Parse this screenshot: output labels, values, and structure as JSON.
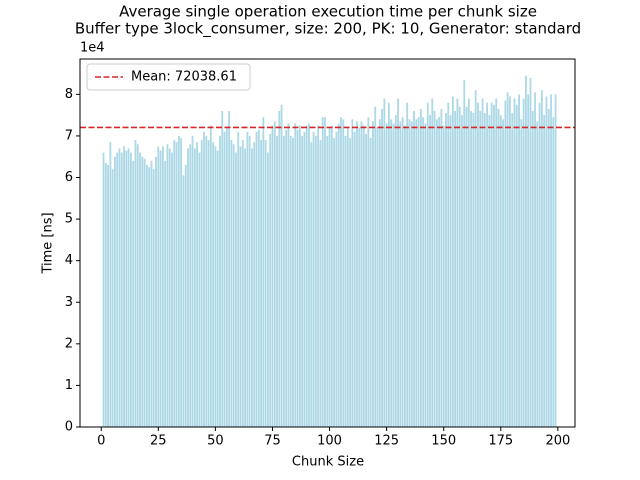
{
  "chart_data": {
    "type": "bar",
    "title": "Average single operation execution time per chunk size",
    "subtitle": "Buffer type 3lock_consumer, size: 200, PK: 10, Generator: standard",
    "x_label": "Chunk Size",
    "y_label": "Time [ns]",
    "y_offset_label": "1e4",
    "color": "#add8e6",
    "mean": {
      "value": 72038.61,
      "label": "Mean: 72038.61",
      "color": "#d62728"
    },
    "legend_position": "upper left",
    "xlim": [
      -9.3,
      207.5
    ],
    "xticks": [
      0,
      25,
      50,
      75,
      100,
      125,
      150,
      175,
      200
    ],
    "ylim": [
      0,
      88500
    ],
    "yticks": [
      {
        "value": 0,
        "label": "0"
      },
      {
        "value": 10000,
        "label": "1"
      },
      {
        "value": 20000,
        "label": "2"
      },
      {
        "value": 30000,
        "label": "3"
      },
      {
        "value": 40000,
        "label": "4"
      },
      {
        "value": 50000,
        "label": "5"
      },
      {
        "value": 60000,
        "label": "6"
      },
      {
        "value": 70000,
        "label": "7"
      },
      {
        "value": 80000,
        "label": "8"
      }
    ],
    "x": [
      1,
      2,
      3,
      4,
      5,
      6,
      7,
      8,
      9,
      10,
      11,
      12,
      13,
      14,
      15,
      16,
      17,
      18,
      19,
      20,
      21,
      22,
      23,
      24,
      25,
      26,
      27,
      28,
      29,
      30,
      31,
      32,
      33,
      34,
      35,
      36,
      37,
      38,
      39,
      40,
      41,
      42,
      43,
      44,
      45,
      46,
      47,
      48,
      49,
      50,
      51,
      52,
      53,
      54,
      55,
      56,
      57,
      58,
      59,
      60,
      61,
      62,
      63,
      64,
      65,
      66,
      67,
      68,
      69,
      70,
      71,
      72,
      73,
      74,
      75,
      76,
      77,
      78,
      79,
      80,
      81,
      82,
      83,
      84,
      85,
      86,
      87,
      88,
      89,
      90,
      91,
      92,
      93,
      94,
      95,
      96,
      97,
      98,
      99,
      100,
      101,
      102,
      103,
      104,
      105,
      106,
      107,
      108,
      109,
      110,
      111,
      112,
      113,
      114,
      115,
      116,
      117,
      118,
      119,
      120,
      121,
      122,
      123,
      124,
      125,
      126,
      127,
      128,
      129,
      130,
      131,
      132,
      133,
      134,
      135,
      136,
      137,
      138,
      139,
      140,
      141,
      142,
      143,
      144,
      145,
      146,
      147,
      148,
      149,
      150,
      151,
      152,
      153,
      154,
      155,
      156,
      157,
      158,
      159,
      160,
      161,
      162,
      163,
      164,
      165,
      166,
      167,
      168,
      169,
      170,
      171,
      172,
      173,
      174,
      175,
      176,
      177,
      178,
      179,
      180,
      181,
      182,
      183,
      184,
      185,
      186,
      187,
      188,
      189,
      190,
      191,
      192,
      193,
      194,
      195,
      196,
      197,
      198,
      199
    ],
    "values": [
      66000,
      63500,
      63000,
      68500,
      62000,
      65000,
      66000,
      67000,
      66000,
      67500,
      66500,
      67000,
      66000,
      64000,
      69000,
      68000,
      66000,
      65000,
      64500,
      63000,
      62500,
      64000,
      62000,
      65000,
      67500,
      66500,
      67500,
      64000,
      68000,
      67000,
      66000,
      69000,
      68500,
      70000,
      69500,
      60500,
      63000,
      67000,
      68000,
      70000,
      67000,
      68500,
      66000,
      69000,
      71000,
      70000,
      69000,
      72500,
      68500,
      67500,
      66500,
      70000,
      76000,
      71000,
      72000,
      76000,
      69000,
      68000,
      66000,
      71000,
      67500,
      69000,
      67000,
      71000,
      70000,
      67000,
      68500,
      71000,
      71500,
      69000,
      74500,
      69000,
      66000,
      70500,
      72500,
      73500,
      70000,
      76000,
      77500,
      70000,
      71500,
      73000,
      70000,
      69500,
      73000,
      71500,
      72500,
      70000,
      71000,
      72500,
      73000,
      68500,
      71000,
      70000,
      72500,
      69000,
      74500,
      74500,
      70000,
      72000,
      72500,
      69500,
      71000,
      73000,
      74500,
      74000,
      70000,
      72000,
      69500,
      74000,
      71000,
      73500,
      72000,
      73500,
      72500,
      70500,
      74500,
      69500,
      73500,
      77000,
      72000,
      74000,
      76500,
      79000,
      73000,
      78000,
      74000,
      73000,
      75000,
      79000,
      73500,
      74500,
      72500,
      78000,
      74000,
      73500,
      76000,
      74000,
      74500,
      76500,
      74500,
      73000,
      78000,
      75000,
      79000,
      76000,
      74000,
      74500,
      76500,
      72500,
      75500,
      78000,
      75000,
      79500,
      76000,
      79000,
      77000,
      75000,
      83500,
      77000,
      79000,
      76000,
      75500,
      81000,
      78000,
      76000,
      79000,
      75500,
      78000,
      75000,
      78000,
      77500,
      79000,
      76500,
      75000,
      74000,
      78500,
      80500,
      79500,
      75500,
      79000,
      77500,
      80000,
      74000,
      79000,
      84500,
      80000,
      84000,
      76000,
      80500,
      73500,
      78000,
      81000,
      75000,
      79500,
      76500,
      80000,
      74500,
      80000
    ]
  }
}
